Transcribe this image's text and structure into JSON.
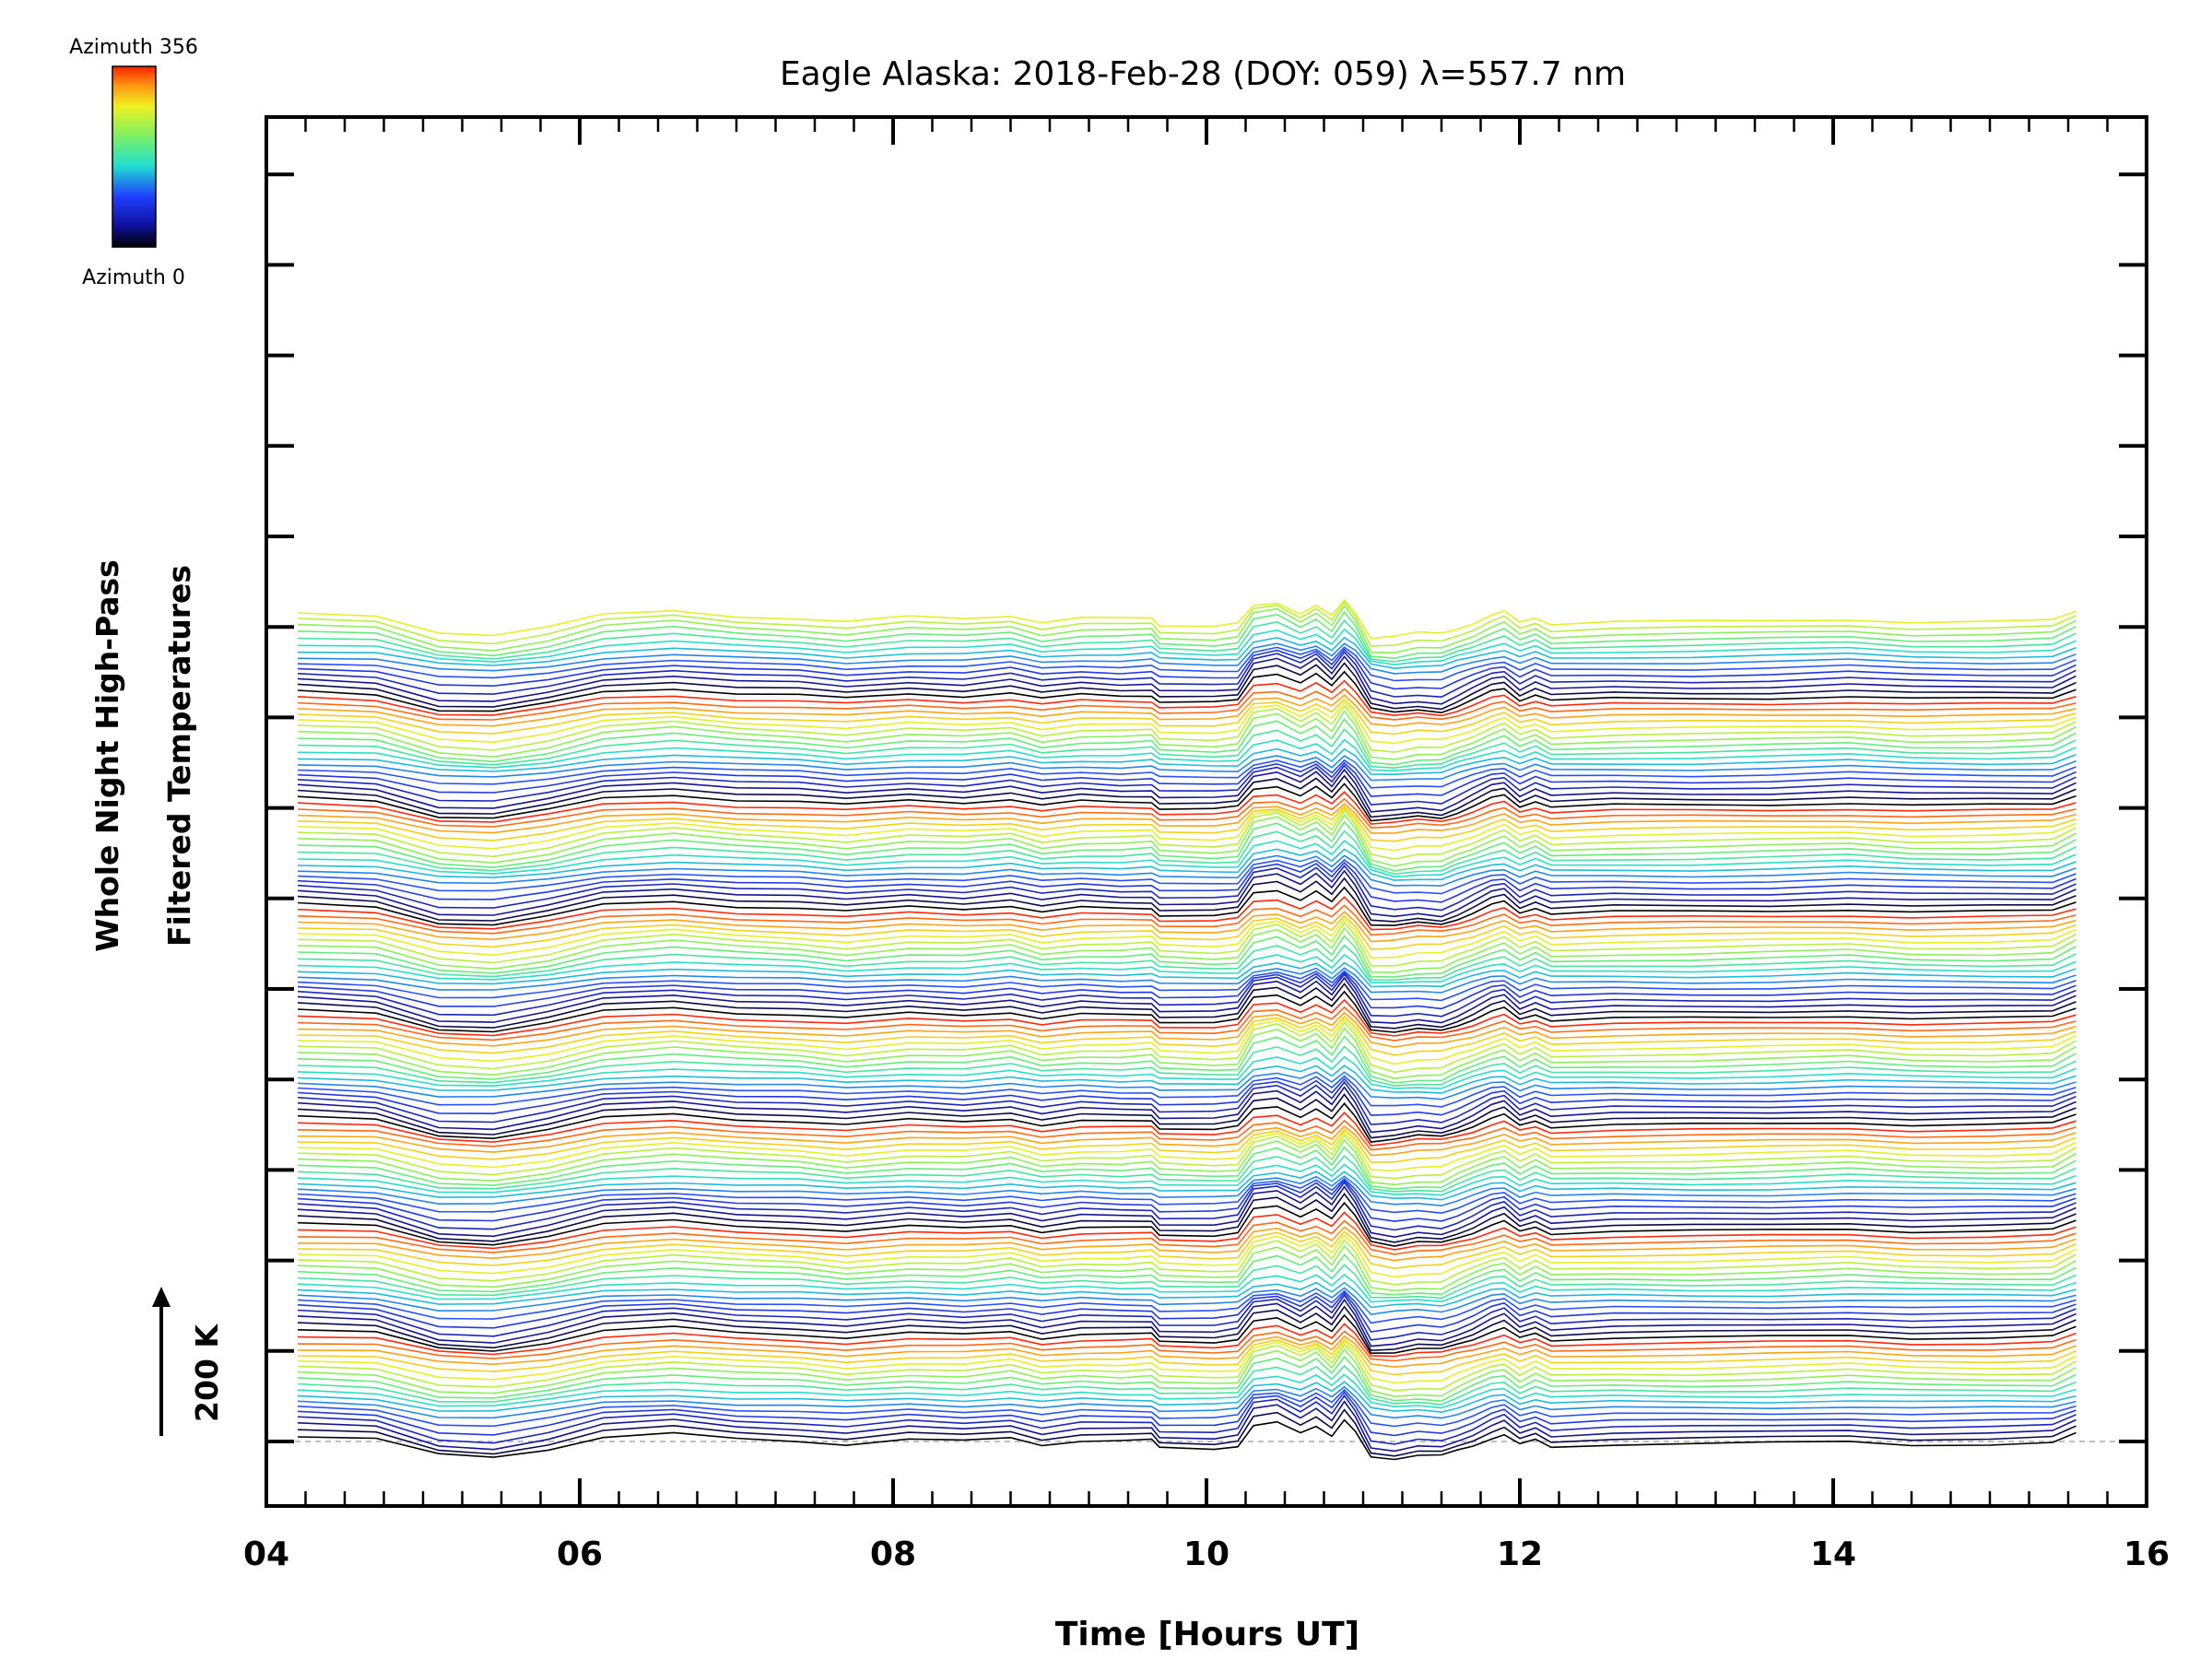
{
  "chart_data": {
    "type": "line",
    "title": "Eagle Alaska: 2018-Feb-28 (DOY: 059) λ=557.7 nm",
    "xlabel": "Time [Hours UT]",
    "ylabel_line1": "Whole Night High-Pass",
    "ylabel_line2": "Filtered Temperatures",
    "scale_label": "200 K",
    "colorbar_top_label": "Azimuth 356",
    "colorbar_bottom_label": "Azimuth 0",
    "xlim": [
      4,
      16
    ],
    "x_ticks": [
      "04",
      "06",
      "08",
      "10",
      "12",
      "14",
      "16"
    ],
    "grid": false,
    "legend": "colorbar top-left",
    "series_count": 140,
    "trace_start_hour": 4.2,
    "trace_end_hour": 15.55,
    "colors": {
      "axis": "#000000",
      "baseline": "#aaaaaa",
      "azimuth_0": "#000000",
      "azimuth_low": "#2020c0",
      "azimuth_mid": "#20e0c0",
      "azimuth_high_mid": "#d8e020",
      "azimuth_356": "#ff3010"
    },
    "common_profile": {
      "x": [
        4.2,
        4.7,
        5.1,
        5.45,
        5.8,
        6.15,
        6.6,
        7.0,
        7.4,
        7.7,
        8.1,
        8.45,
        8.75,
        8.95,
        9.2,
        9.45,
        9.65,
        9.7,
        10.05,
        10.2,
        10.3,
        10.45,
        10.6,
        10.7,
        10.8,
        10.88,
        10.95,
        11.05,
        11.2,
        11.35,
        11.5,
        11.6,
        11.7,
        11.82,
        11.9,
        12.0,
        12.1,
        12.2,
        12.6,
        13.1,
        13.6,
        14.1,
        14.5,
        15.0,
        15.4,
        15.55
      ],
      "y": [
        5,
        2,
        -14,
        -16,
        -8,
        4,
        8,
        3,
        1,
        -3,
        2,
        0,
        4,
        -3,
        1,
        0,
        1,
        -6,
        -7,
        -5,
        16,
        20,
        10,
        18,
        6,
        22,
        10,
        -16,
        -18,
        -15,
        -16,
        -10,
        -4,
        4,
        7,
        -4,
        2,
        -5,
        -3,
        -3,
        -2,
        0,
        -3,
        -3,
        -2,
        8
      ],
      "units": "K (relative, high-pass filtered)"
    }
  }
}
